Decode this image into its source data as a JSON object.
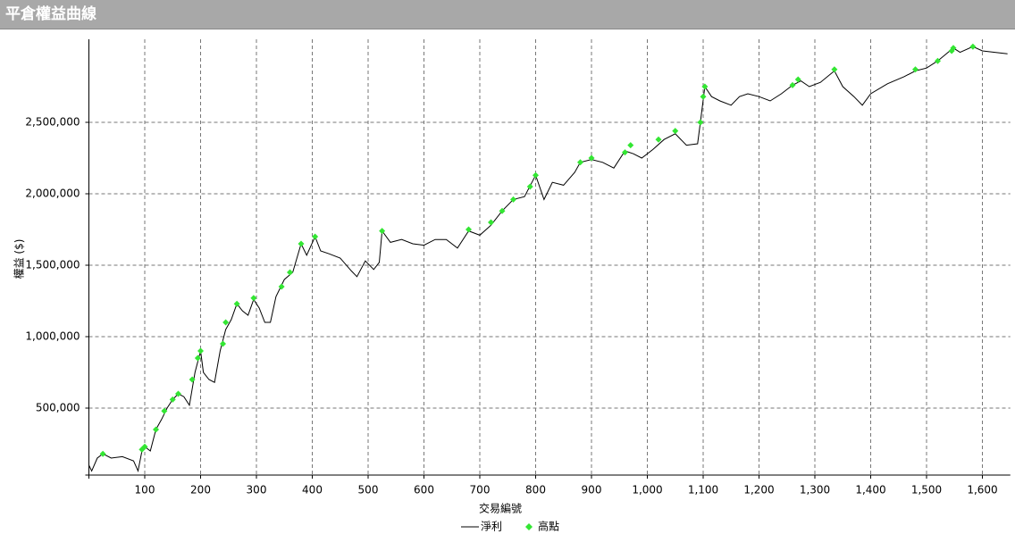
{
  "chart_data": {
    "type": "line",
    "title": "平倉權益曲線",
    "x_label": "交易編號",
    "y_label": "權益 ($)",
    "xlim": [
      0,
      1650
    ],
    "ylim": [
      31250,
      3031250
    ],
    "xticks": [
      100,
      200,
      300,
      400,
      500,
      600,
      700,
      800,
      900,
      {
        "value": 1000,
        "label": "1,000"
      },
      {
        "value": 1100,
        "label": "1,100"
      },
      {
        "value": 1200,
        "label": "1,200"
      },
      {
        "value": 1300,
        "label": "1,300"
      },
      {
        "value": 1400,
        "label": "1,400"
      },
      {
        "value": 1500,
        "label": "1,500"
      },
      {
        "value": 1600,
        "label": "1,600"
      }
    ],
    "yticks": [
      {
        "value": 500000,
        "label": "500,000"
      },
      {
        "value": 1000000,
        "label": "1,000,000"
      },
      {
        "value": 1500000,
        "label": "1,500,000"
      },
      {
        "value": 2000000,
        "label": "2,000,000"
      },
      {
        "value": 2500000,
        "label": "2,500,000"
      }
    ],
    "grid": true,
    "series": [
      {
        "name": "淨利",
        "type": "line",
        "color": "#000000",
        "x": [
          0,
          5,
          15,
          25,
          40,
          60,
          80,
          88,
          95,
          100,
          110,
          120,
          130,
          140,
          150,
          160,
          170,
          180,
          190,
          200,
          205,
          215,
          225,
          235,
          245,
          255,
          265,
          275,
          285,
          295,
          305,
          315,
          325,
          335,
          350,
          365,
          380,
          390,
          405,
          415,
          430,
          450,
          470,
          480,
          495,
          510,
          520,
          525,
          540,
          560,
          580,
          600,
          620,
          640,
          660,
          680,
          700,
          720,
          740,
          760,
          780,
          800,
          815,
          830,
          850,
          870,
          880,
          900,
          920,
          940,
          960,
          975,
          990,
          1010,
          1030,
          1050,
          1070,
          1090,
          1095,
          1103,
          1115,
          1130,
          1150,
          1165,
          1180,
          1200,
          1220,
          1240,
          1260,
          1275,
          1290,
          1310,
          1335,
          1350,
          1370,
          1385,
          1400,
          1430,
          1460,
          1480,
          1500,
          1520,
          1548,
          1560,
          1583,
          1600,
          1645
        ],
        "values": [
          100000,
          60000,
          150000,
          180000,
          150000,
          160000,
          130000,
          60000,
          200000,
          230000,
          200000,
          350000,
          420000,
          500000,
          560000,
          600000,
          580000,
          520000,
          750000,
          900000,
          750000,
          700000,
          680000,
          900000,
          1050000,
          1120000,
          1230000,
          1180000,
          1150000,
          1260000,
          1200000,
          1100000,
          1100000,
          1280000,
          1400000,
          1450000,
          1650000,
          1570000,
          1700000,
          1600000,
          1580000,
          1550000,
          1460000,
          1420000,
          1530000,
          1470000,
          1520000,
          1740000,
          1660000,
          1680000,
          1650000,
          1640000,
          1680000,
          1680000,
          1620000,
          1740000,
          1710000,
          1780000,
          1880000,
          1960000,
          1980000,
          2130000,
          1960000,
          2080000,
          2060000,
          2150000,
          2220000,
          2240000,
          2220000,
          2180000,
          2300000,
          2280000,
          2250000,
          2310000,
          2380000,
          2420000,
          2340000,
          2350000,
          2500000,
          2750000,
          2680000,
          2650000,
          2620000,
          2680000,
          2700000,
          2680000,
          2650000,
          2700000,
          2760000,
          2790000,
          2750000,
          2780000,
          2860000,
          2750000,
          2680000,
          2620000,
          2700000,
          2770000,
          2820000,
          2860000,
          2880000,
          2930000,
          3020000,
          2990000,
          3030000,
          3000000,
          2980000
        ]
      },
      {
        "name": "高點",
        "type": "scatter",
        "color": "#33e633",
        "x": [
          25,
          95,
          100,
          120,
          135,
          150,
          160,
          185,
          195,
          200,
          240,
          245,
          265,
          295,
          345,
          360,
          380,
          405,
          525,
          680,
          720,
          740,
          760,
          790,
          800,
          880,
          900,
          960,
          970,
          1020,
          1050,
          1095,
          1100,
          1103,
          1260,
          1270,
          1335,
          1480,
          1520,
          1545,
          1548,
          1583
        ],
        "values": [
          180000,
          210000,
          230000,
          350000,
          480000,
          560000,
          600000,
          700000,
          850000,
          900000,
          950000,
          1100000,
          1230000,
          1270000,
          1350000,
          1450000,
          1650000,
          1700000,
          1740000,
          1750000,
          1800000,
          1880000,
          1960000,
          2050000,
          2130000,
          2220000,
          2250000,
          2290000,
          2340000,
          2380000,
          2440000,
          2500000,
          2680000,
          2750000,
          2760000,
          2800000,
          2870000,
          2870000,
          2930000,
          3000000,
          3020000,
          3030000
        ]
      }
    ]
  }
}
